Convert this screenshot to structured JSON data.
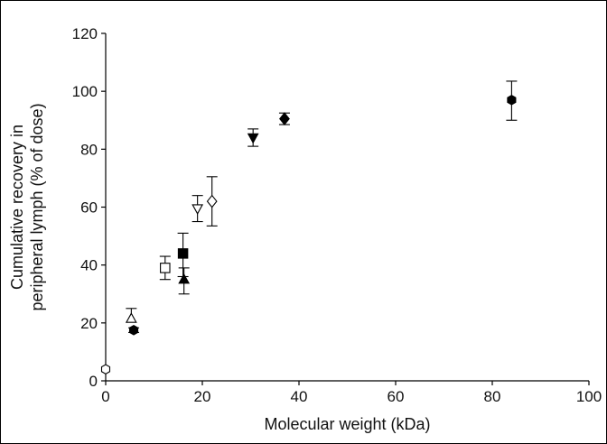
{
  "chart_data": {
    "type": "scatter",
    "title": "",
    "xlabel": "Molecular weight (kDa)",
    "ylabel_lines": [
      "Cumulative recovery in",
      "peripheral lymph (% of dose)"
    ],
    "xlim": [
      0,
      100
    ],
    "ylim": [
      0,
      120
    ],
    "xticks": [
      0,
      20,
      40,
      60,
      80,
      100
    ],
    "yticks": [
      0,
      20,
      40,
      60,
      80,
      100,
      120
    ],
    "grid": false,
    "points": [
      {
        "x": 0.0,
        "y": 4.0,
        "err_low": 0.0,
        "err_high": 0.0,
        "marker": "hexagon",
        "filled": false
      },
      {
        "x": 5.3,
        "y": 21.5,
        "err_low": 0.0,
        "err_high": 3.5,
        "marker": "triangle-up",
        "filled": false
      },
      {
        "x": 5.8,
        "y": 17.5,
        "err_low": 0.8,
        "err_high": 0.8,
        "marker": "hexagon",
        "filled": true
      },
      {
        "x": 12.3,
        "y": 39.0,
        "err_low": 4.0,
        "err_high": 4.0,
        "marker": "square",
        "filled": false
      },
      {
        "x": 16.0,
        "y": 44.0,
        "err_low": 8.0,
        "err_high": 7.0,
        "marker": "square",
        "filled": true
      },
      {
        "x": 16.2,
        "y": 35.0,
        "err_low": 5.0,
        "err_high": 4.0,
        "marker": "triangle-up",
        "filled": true
      },
      {
        "x": 19.0,
        "y": 59.5,
        "err_low": 4.5,
        "err_high": 4.5,
        "marker": "triangle-down",
        "filled": false
      },
      {
        "x": 22.0,
        "y": 62.0,
        "err_low": 8.5,
        "err_high": 8.5,
        "marker": "diamond",
        "filled": false
      },
      {
        "x": 30.5,
        "y": 84.0,
        "err_low": 3.0,
        "err_high": 3.0,
        "marker": "triangle-down",
        "filled": true
      },
      {
        "x": 37.0,
        "y": 90.5,
        "err_low": 2.0,
        "err_high": 2.0,
        "marker": "diamond",
        "filled": true
      },
      {
        "x": 84.0,
        "y": 97.0,
        "err_low": 7.0,
        "err_high": 6.5,
        "marker": "hexagon",
        "filled": true
      }
    ]
  }
}
